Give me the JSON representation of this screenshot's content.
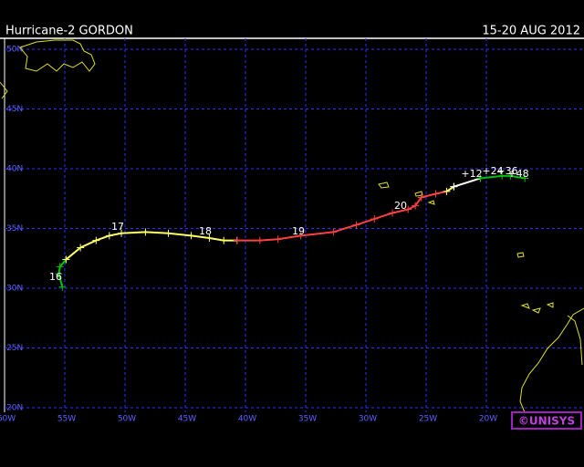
{
  "header": {
    "title": "Hurricane-2 GORDON",
    "dates": "15-20 AUG 2012"
  },
  "map": {
    "lon_ticks": [
      {
        "value": 60,
        "label": "60W"
      },
      {
        "value": 55,
        "label": "55W"
      },
      {
        "value": 50,
        "label": "50W"
      },
      {
        "value": 45,
        "label": "45W"
      },
      {
        "value": 40,
        "label": "40W"
      },
      {
        "value": 35,
        "label": "35W"
      },
      {
        "value": 30,
        "label": "30W"
      },
      {
        "value": 25,
        "label": "25W"
      },
      {
        "value": 20,
        "label": "20W"
      }
    ],
    "lat_ticks": [
      {
        "value": 50,
        "label": "50N"
      },
      {
        "value": 45,
        "label": "45N"
      },
      {
        "value": 40,
        "label": "40N"
      },
      {
        "value": 35,
        "label": "35N"
      },
      {
        "value": 30,
        "label": "30N"
      },
      {
        "value": 25,
        "label": "25N"
      },
      {
        "value": 20,
        "label": "20N"
      }
    ],
    "track": [
      {
        "color": "#00c000",
        "lon": [
          55.2,
          55.5,
          55.4,
          54.9
        ],
        "lat": [
          30.1,
          31.2,
          31.8,
          32.4
        ]
      },
      {
        "color": "#ffff66",
        "lon": [
          54.9,
          53.7,
          52.4,
          51.3,
          50.3,
          48.3,
          46.4,
          44.5,
          43.0,
          41.8,
          40.7
        ],
        "lat": [
          32.4,
          33.4,
          34.0,
          34.4,
          34.6,
          34.7,
          34.6,
          34.4,
          34.2,
          34.0,
          34.0
        ]
      },
      {
        "color": "#ff4040",
        "lon": [
          40.7,
          38.8,
          37.3,
          35.4,
          32.7,
          30.8,
          29.3,
          27.8,
          26.5,
          25.9,
          25.4,
          24.2,
          23.3
        ],
        "lat": [
          34.0,
          34.0,
          34.1,
          34.4,
          34.7,
          35.3,
          35.8,
          36.3,
          36.6,
          36.9,
          37.6,
          37.9,
          38.1
        ]
      },
      {
        "color": "#ffff66",
        "lon": [
          23.3,
          22.7
        ],
        "lat": [
          38.1,
          38.5
        ]
      },
      {
        "color": "#ffffff",
        "lon": [
          22.7,
          20.5
        ],
        "lat": [
          38.5,
          39.2
        ]
      },
      {
        "color": "#00c000",
        "lon": [
          20.5,
          18.7,
          18.0,
          16.8
        ],
        "lat": [
          39.2,
          39.4,
          39.4,
          39.2
        ]
      }
    ],
    "day_labels": [
      "16",
      "17",
      "18",
      "19",
      "20"
    ],
    "forecast_labels": [
      "+12",
      "+24",
      "+36",
      "+48"
    ]
  },
  "logo": "©UNISYS"
}
